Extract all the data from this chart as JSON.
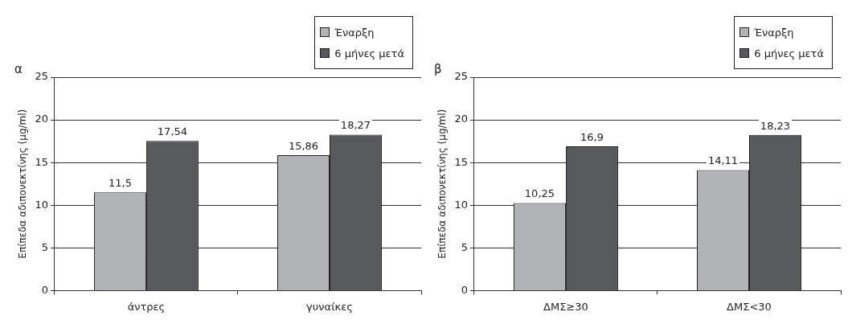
{
  "chart_data": [
    {
      "type": "bar",
      "title": "α",
      "ylabel": "Επίπεδα αδιπονεκτίνης (μg/ml)",
      "categories": [
        "άντρες",
        "γυναίκες"
      ],
      "series": [
        {
          "name": "Έναρξη",
          "color": "#b2b3b5",
          "values": [
            11.5,
            15.86
          ],
          "value_labels": [
            "11,5",
            "15,86"
          ]
        },
        {
          "name": "6 μήνες μετά",
          "color": "#58595b",
          "values": [
            17.54,
            18.27
          ],
          "value_labels": [
            "17,54",
            "18,27"
          ]
        }
      ],
      "ylim": [
        0,
        25
      ],
      "yticks": [
        0,
        5,
        10,
        15,
        20,
        25
      ],
      "grid": "y",
      "legend": "top right"
    },
    {
      "type": "bar",
      "title": "β",
      "ylabel": "Επίπεδα αδιπονεκτίνης (μg/ml)",
      "categories": [
        "ΔΜΣ≥30",
        "ΔΜΣ<30"
      ],
      "series": [
        {
          "name": "Έναρξη",
          "color": "#b2b3b5",
          "values": [
            10.25,
            14.11
          ],
          "value_labels": [
            "10,25",
            "14,11"
          ]
        },
        {
          "name": "6 μήνες μετά",
          "color": "#58595b",
          "values": [
            16.9,
            18.23
          ],
          "value_labels": [
            "16,9",
            "18,23"
          ]
        }
      ],
      "ylim": [
        0,
        25
      ],
      "yticks": [
        0,
        5,
        10,
        15,
        20,
        25
      ],
      "grid": "y",
      "legend": "top right"
    }
  ]
}
